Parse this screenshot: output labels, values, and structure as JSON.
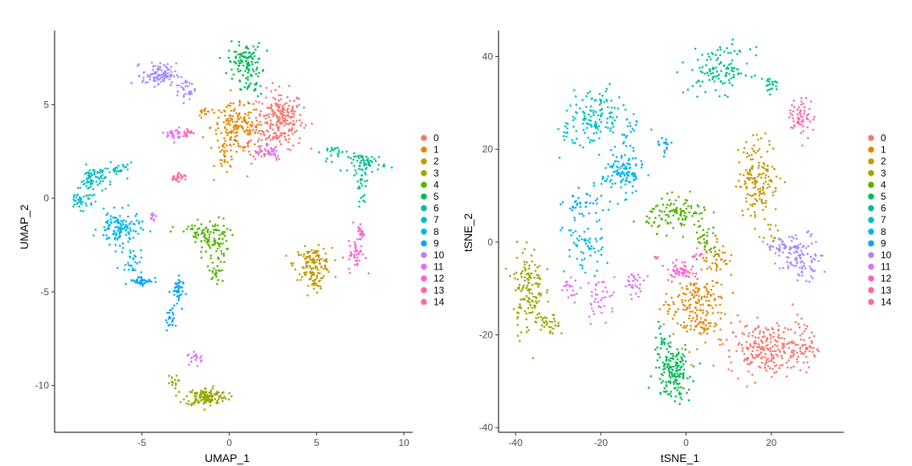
{
  "palette": [
    "#F8766D",
    "#E38900",
    "#C49A00",
    "#99A800",
    "#53B400",
    "#00BC56",
    "#00C094",
    "#00BFC4",
    "#00B6EB",
    "#06A4FF",
    "#A58AFF",
    "#DF70F8",
    "#FB61D7",
    "#FF66A8",
    "#FF6C91"
  ],
  "chart_data": [
    {
      "type": "scatter",
      "title": "",
      "xlabel": "UMAP_1",
      "ylabel": "UMAP_2",
      "xlim": [
        -10,
        10.5
      ],
      "ylim": [
        -12.5,
        9.3
      ],
      "xticks": [
        -5,
        0,
        5,
        10
      ],
      "yticks": [
        -10,
        -5,
        0,
        5
      ],
      "legend": {
        "position": "right",
        "labels": [
          "0",
          "1",
          "2",
          "3",
          "4",
          "5",
          "6",
          "7",
          "8",
          "9",
          "10",
          "11",
          "12",
          "13",
          "14"
        ]
      },
      "clusters": [
        {
          "label": "0",
          "blobs": [
            [
              2.9,
              4.2,
              1.1,
              1.3,
              230
            ],
            [
              1.6,
              3.0,
              0.9,
              0.9,
              40
            ]
          ]
        },
        {
          "label": "1",
          "blobs": [
            [
              0.4,
              3.8,
              1.2,
              1.0,
              150
            ],
            [
              -0.2,
              2.2,
              0.5,
              0.8,
              30
            ],
            [
              -1.4,
              4.6,
              0.3,
              0.3,
              15
            ]
          ]
        },
        {
          "label": "2",
          "blobs": [
            [
              4.8,
              -3.5,
              0.9,
              0.7,
              130
            ],
            [
              4.9,
              -4.6,
              0.3,
              0.4,
              20
            ]
          ]
        },
        {
          "label": "3",
          "blobs": [
            [
              -1.3,
              -10.6,
              1.0,
              0.4,
              140
            ],
            [
              -3.3,
              -9.8,
              0.3,
              0.3,
              15
            ]
          ]
        },
        {
          "label": "4",
          "blobs": [
            [
              -1.0,
              -2.3,
              0.8,
              1.0,
              90
            ],
            [
              -1.6,
              -1.8,
              1.3,
              0.3,
              30
            ],
            [
              -0.7,
              -4.0,
              0.5,
              0.6,
              20
            ]
          ]
        },
        {
          "label": "5",
          "blobs": [
            [
              0.9,
              7.3,
              0.8,
              0.8,
              110
            ],
            [
              1.3,
              6.0,
              0.5,
              0.6,
              20
            ]
          ]
        },
        {
          "label": "6",
          "blobs": [
            [
              7.9,
              1.9,
              0.9,
              0.4,
              60
            ],
            [
              7.6,
              0.7,
              0.3,
              0.9,
              30
            ],
            [
              6.0,
              2.5,
              0.6,
              0.3,
              20
            ]
          ]
        },
        {
          "label": "7",
          "blobs": [
            [
              -7.8,
              1.0,
              0.6,
              0.6,
              70
            ],
            [
              -8.5,
              -0.1,
              0.6,
              0.4,
              40
            ],
            [
              -6.3,
              1.5,
              0.7,
              0.3,
              30
            ]
          ]
        },
        {
          "label": "8",
          "blobs": [
            [
              -6.3,
              -1.6,
              1.0,
              0.7,
              120
            ],
            [
              -5.6,
              -3.3,
              0.5,
              0.6,
              30
            ]
          ]
        },
        {
          "label": "9",
          "blobs": [
            [
              -5.0,
              -4.4,
              0.6,
              0.2,
              40
            ],
            [
              -3.0,
              -5.0,
              0.3,
              0.7,
              40
            ],
            [
              -3.4,
              -6.5,
              0.2,
              0.5,
              20
            ]
          ]
        },
        {
          "label": "10",
          "blobs": [
            [
              -4.0,
              6.6,
              0.8,
              0.5,
              100
            ],
            [
              -2.5,
              5.8,
              0.5,
              0.5,
              30
            ]
          ]
        },
        {
          "label": "11",
          "blobs": [
            [
              -3.0,
              3.4,
              0.5,
              0.3,
              30
            ],
            [
              2.1,
              2.5,
              0.9,
              0.4,
              30
            ],
            [
              -4.4,
              -1.0,
              0.2,
              0.3,
              10
            ],
            [
              -1.9,
              -8.5,
              0.4,
              0.3,
              20
            ]
          ]
        },
        {
          "label": "12",
          "blobs": [
            [
              7.3,
              -3.1,
              0.4,
              0.7,
              40
            ],
            [
              7.5,
              -1.8,
              0.2,
              0.4,
              20
            ]
          ]
        },
        {
          "label": "13",
          "blobs": [
            [
              -2.3,
              3.5,
              0.3,
              0.2,
              15
            ],
            [
              -2.8,
              1.2,
              0.3,
              0.2,
              12
            ]
          ]
        },
        {
          "label": "14",
          "blobs": [
            [
              -3.0,
              1.1,
              0.3,
              0.2,
              15
            ]
          ]
        }
      ]
    },
    {
      "type": "scatter",
      "title": "",
      "xlabel": "tSNE_1",
      "ylabel": "tSNE_2",
      "xlim": [
        -44,
        37
      ],
      "ylim": [
        -41,
        47
      ],
      "xticks": [
        -40,
        -20,
        0,
        20
      ],
      "yticks": [
        -40,
        -20,
        0,
        20,
        40
      ],
      "legend": {
        "position": "right",
        "labels": [
          "0",
          "1",
          "2",
          "3",
          "4",
          "5",
          "6",
          "7",
          "8",
          "9",
          "10",
          "11",
          "12",
          "13",
          "14"
        ]
      },
      "clusters": [
        {
          "label": "0",
          "blobs": [
            [
              19,
              -23,
              7.5,
              4.5,
              240
            ],
            [
              28,
              -22,
              2.5,
              4,
              40
            ]
          ]
        },
        {
          "label": "1",
          "blobs": [
            [
              2,
              -14,
              6,
              7,
              200
            ],
            [
              7,
              -3,
              2.5,
              4,
              40
            ]
          ]
        },
        {
          "label": "2",
          "blobs": [
            [
              17,
              14,
              4,
              7,
              160
            ],
            [
              19,
              2,
              2,
              2,
              15
            ]
          ]
        },
        {
          "label": "3",
          "blobs": [
            [
              -37,
              -10,
              3,
              8,
              140
            ],
            [
              -32,
              -18,
              2,
              2,
              30
            ]
          ]
        },
        {
          "label": "4",
          "blobs": [
            [
              -2,
              6,
              6,
              3,
              110
            ],
            [
              5,
              0,
              2.5,
              3.5,
              30
            ]
          ]
        },
        {
          "label": "5",
          "blobs": [
            [
              -3,
              -28,
              3.5,
              5,
              160
            ],
            [
              -6,
              -21,
              1.5,
              2.5,
              20
            ]
          ]
        },
        {
          "label": "6",
          "blobs": [
            [
              8,
              37,
              6,
              4,
              120
            ],
            [
              20,
              34,
              2,
              1.5,
              20
            ]
          ]
        },
        {
          "label": "7",
          "blobs": [
            [
              -21,
              27,
              5,
              5,
              120
            ],
            [
              -27,
              23,
              2,
              3,
              20
            ]
          ]
        },
        {
          "label": "8",
          "blobs": [
            [
              -15,
              15,
              4,
              4,
              120
            ],
            [
              -24,
              -1,
              4,
              5,
              60
            ],
            [
              -13,
              24,
              2,
              3,
              20
            ]
          ]
        },
        {
          "label": "9",
          "blobs": [
            [
              -24,
              8,
              4,
              2.5,
              40
            ],
            [
              -5,
              20,
              1.2,
              2,
              15
            ]
          ]
        },
        {
          "label": "10",
          "blobs": [
            [
              27,
              -3,
              4,
              4,
              100
            ],
            [
              22,
              -1,
              3,
              1.5,
              30
            ]
          ]
        },
        {
          "label": "11",
          "blobs": [
            [
              -20,
              -12,
              3,
              4,
              40
            ],
            [
              -12,
              -9,
              2,
              2,
              30
            ],
            [
              -27,
              -10,
              2,
              2,
              20
            ]
          ]
        },
        {
          "label": "12",
          "blobs": [
            [
              -1,
              -6,
              2.5,
              1.5,
              50
            ],
            [
              2.5,
              -3,
              1,
              2,
              10
            ]
          ]
        },
        {
          "label": "13",
          "blobs": [
            [
              27,
              27,
              2.5,
              3.5,
              60
            ]
          ]
        },
        {
          "label": "14",
          "blobs": [
            [
              -7,
              -3.5,
              0.5,
              0.5,
              5
            ]
          ]
        }
      ]
    }
  ]
}
